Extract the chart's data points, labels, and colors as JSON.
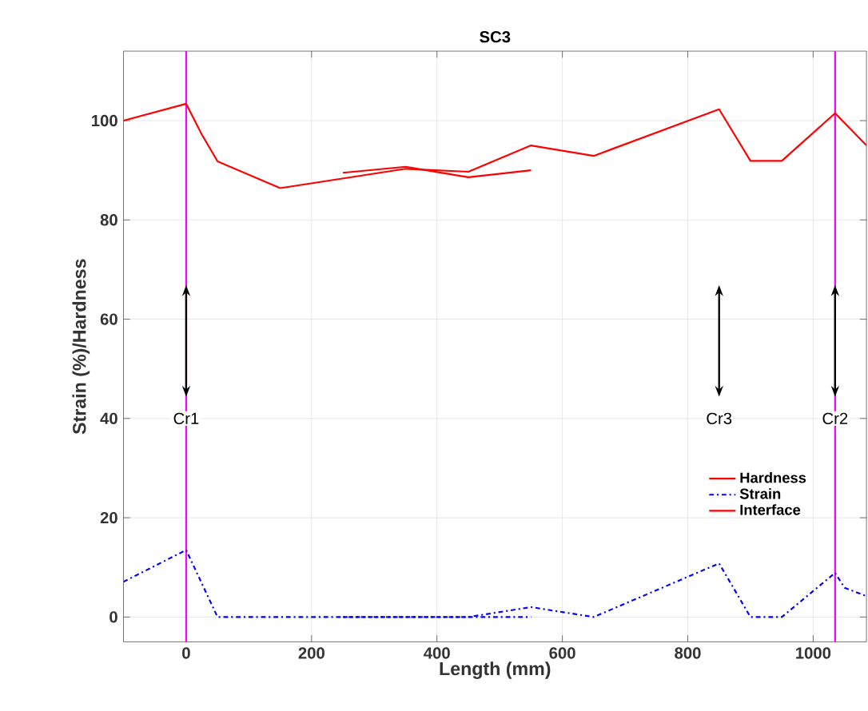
{
  "chart_data": {
    "type": "line",
    "title": "SC3",
    "xlabel": "Length (mm)",
    "ylabel": "Strain (%)/Hardness",
    "xlim": [
      -100,
      1085
    ],
    "ylim": [
      -5,
      114
    ],
    "xticks": [
      0,
      200,
      400,
      600,
      800,
      1000
    ],
    "yticks": [
      0,
      20,
      40,
      60,
      80,
      100
    ],
    "grid": true,
    "legend": "bottom right",
    "marker": "none",
    "series": [
      {
        "name": "Hardness",
        "color": "#ff0000",
        "line_style": "solid",
        "x": [
          -100,
          0,
          25,
          50,
          150,
          350,
          450,
          550,
          650,
          850,
          900,
          950,
          1035,
          1085
        ],
        "values": [
          100,
          103.4,
          97.2,
          91.8,
          86.4,
          90.3,
          89.7,
          95,
          92.9,
          102.3,
          91.9,
          91.9,
          101.5,
          95
        ]
      },
      {
        "name": "Strain",
        "color": "#0000ff",
        "line_style": "dashdot",
        "x": [
          -100,
          0,
          50,
          450,
          550,
          650,
          850,
          900,
          950,
          1035,
          1050,
          1085
        ],
        "values": [
          7.1,
          13.5,
          0,
          0,
          2,
          0,
          10.8,
          0,
          0,
          8.9,
          5.9,
          4.2
        ]
      },
      {
        "name": "Interface",
        "color": "#ff0000",
        "line_style": "solid",
        "x": [
          250,
          350,
          450,
          550
        ],
        "values": [
          89.5,
          90.7,
          88.6,
          90
        ]
      },
      {
        "color": "#0000ff",
        "line_style": "dashdot",
        "x": [
          250,
          550
        ],
        "values": [
          0,
          0
        ]
      }
    ],
    "ref_lines": [
      {
        "axis": "x",
        "value": 0,
        "color": "#ff00ff"
      },
      {
        "axis": "x",
        "value": 1035,
        "color": "#ff00ff"
      }
    ],
    "annotations": [
      {
        "text": "Cr1",
        "x": 0,
        "y": 40
      },
      {
        "text": "Cr3",
        "x": 850,
        "y": 40
      },
      {
        "text": "Cr2",
        "x": 1035,
        "y": 40
      }
    ]
  }
}
